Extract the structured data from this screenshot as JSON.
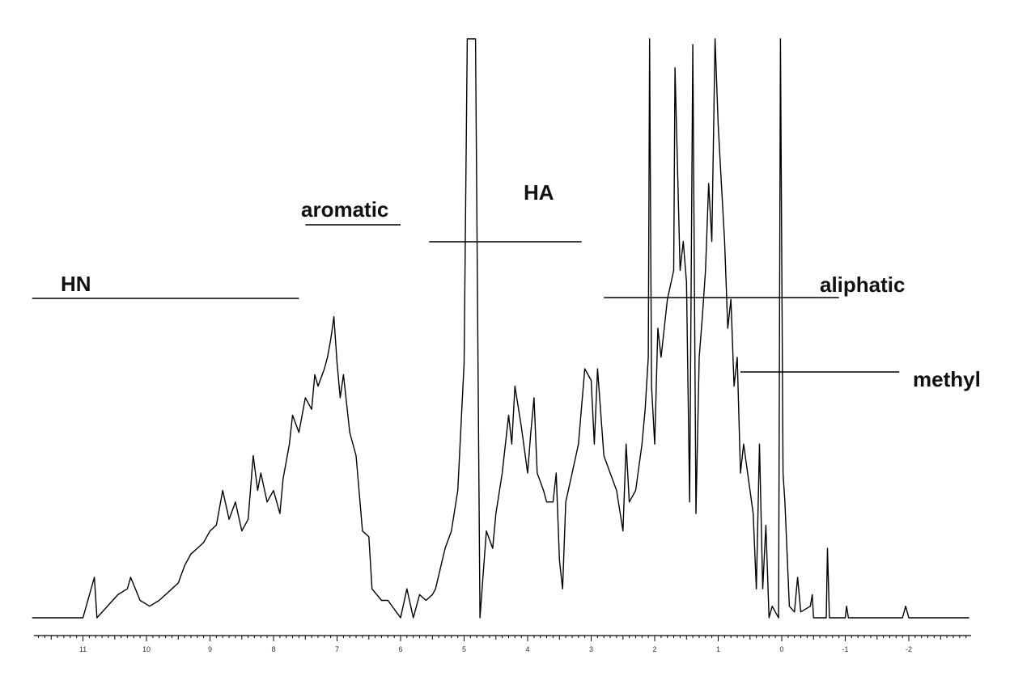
{
  "chart_data": {
    "type": "line",
    "title": "",
    "xlabel": "",
    "ylabel": "",
    "x_reversed": true,
    "xlim": [
      11.8,
      -2.95
    ],
    "tick_labels": [
      "11",
      "10",
      "9",
      "8",
      "7",
      "6",
      "5",
      "4",
      "3",
      "2",
      "1",
      "0",
      "-1",
      "-2"
    ],
    "regions": [
      {
        "name": "HN",
        "x_range": [
          11.8,
          7.6
        ]
      },
      {
        "name": "aromatic",
        "x_range": [
          7.5,
          6.0
        ]
      },
      {
        "name": "HA",
        "x_range": [
          5.55,
          3.15
        ]
      },
      {
        "name": "aliphatic",
        "x_range": [
          2.8,
          -0.9
        ]
      },
      {
        "name": "methyl",
        "x_range": [
          0.65,
          -1.85
        ]
      }
    ],
    "series": [
      {
        "values_unit": "relative intensity (approximate)",
        "points": [
          [
            11.8,
            0.0
          ],
          [
            11.0,
            0.0
          ],
          [
            10.82,
            0.07
          ],
          [
            10.78,
            0.0
          ],
          [
            10.45,
            0.04
          ],
          [
            10.3,
            0.05
          ],
          [
            10.25,
            0.07
          ],
          [
            10.1,
            0.03
          ],
          [
            9.95,
            0.02
          ],
          [
            9.8,
            0.03
          ],
          [
            9.7,
            0.04
          ],
          [
            9.6,
            0.05
          ],
          [
            9.5,
            0.06
          ],
          [
            9.4,
            0.09
          ],
          [
            9.3,
            0.11
          ],
          [
            9.2,
            0.12
          ],
          [
            9.1,
            0.13
          ],
          [
            9.0,
            0.15
          ],
          [
            8.9,
            0.16
          ],
          [
            8.8,
            0.22
          ],
          [
            8.7,
            0.17
          ],
          [
            8.6,
            0.2
          ],
          [
            8.5,
            0.15
          ],
          [
            8.4,
            0.17
          ],
          [
            8.32,
            0.28
          ],
          [
            8.25,
            0.22
          ],
          [
            8.2,
            0.25
          ],
          [
            8.1,
            0.2
          ],
          [
            8.0,
            0.22
          ],
          [
            7.9,
            0.18
          ],
          [
            7.85,
            0.24
          ],
          [
            7.75,
            0.3
          ],
          [
            7.7,
            0.35
          ],
          [
            7.6,
            0.32
          ],
          [
            7.5,
            0.38
          ],
          [
            7.4,
            0.36
          ],
          [
            7.35,
            0.42
          ],
          [
            7.3,
            0.4
          ],
          [
            7.2,
            0.43
          ],
          [
            7.15,
            0.45
          ],
          [
            7.1,
            0.48
          ],
          [
            7.05,
            0.52
          ],
          [
            7.0,
            0.44
          ],
          [
            6.95,
            0.38
          ],
          [
            6.9,
            0.42
          ],
          [
            6.8,
            0.32
          ],
          [
            6.75,
            0.3
          ],
          [
            6.7,
            0.28
          ],
          [
            6.6,
            0.15
          ],
          [
            6.5,
            0.14
          ],
          [
            6.45,
            0.05
          ],
          [
            6.3,
            0.03
          ],
          [
            6.2,
            0.03
          ],
          [
            6.0,
            0.0
          ],
          [
            5.9,
            0.05
          ],
          [
            5.8,
            0.0
          ],
          [
            5.7,
            0.04
          ],
          [
            5.6,
            0.03
          ],
          [
            5.5,
            0.04
          ],
          [
            5.45,
            0.05
          ],
          [
            5.3,
            0.12
          ],
          [
            5.2,
            0.15
          ],
          [
            5.1,
            0.22
          ],
          [
            5.0,
            0.44
          ],
          [
            4.95,
            1.0
          ],
          [
            4.82,
            1.0
          ],
          [
            4.75,
            0.0
          ],
          [
            4.65,
            0.15
          ],
          [
            4.55,
            0.12
          ],
          [
            4.5,
            0.18
          ],
          [
            4.4,
            0.25
          ],
          [
            4.3,
            0.35
          ],
          [
            4.25,
            0.3
          ],
          [
            4.2,
            0.4
          ],
          [
            4.1,
            0.33
          ],
          [
            4.0,
            0.25
          ],
          [
            3.95,
            0.32
          ],
          [
            3.9,
            0.38
          ],
          [
            3.85,
            0.25
          ],
          [
            3.75,
            0.22
          ],
          [
            3.7,
            0.2
          ],
          [
            3.6,
            0.2
          ],
          [
            3.55,
            0.25
          ],
          [
            3.5,
            0.1
          ],
          [
            3.45,
            0.05
          ],
          [
            3.4,
            0.2
          ],
          [
            3.3,
            0.25
          ],
          [
            3.2,
            0.3
          ],
          [
            3.1,
            0.43
          ],
          [
            3.0,
            0.41
          ],
          [
            2.95,
            0.3
          ],
          [
            2.9,
            0.43
          ],
          [
            2.8,
            0.28
          ],
          [
            2.7,
            0.25
          ],
          [
            2.6,
            0.22
          ],
          [
            2.5,
            0.15
          ],
          [
            2.45,
            0.3
          ],
          [
            2.4,
            0.2
          ],
          [
            2.3,
            0.22
          ],
          [
            2.2,
            0.3
          ],
          [
            2.15,
            0.36
          ],
          [
            2.1,
            0.45
          ],
          [
            2.08,
            1.0
          ],
          [
            2.05,
            0.4
          ],
          [
            2.0,
            0.3
          ],
          [
            1.95,
            0.5
          ],
          [
            1.9,
            0.45
          ],
          [
            1.8,
            0.55
          ],
          [
            1.7,
            0.6
          ],
          [
            1.68,
            0.95
          ],
          [
            1.6,
            0.6
          ],
          [
            1.55,
            0.65
          ],
          [
            1.5,
            0.58
          ],
          [
            1.45,
            0.2
          ],
          [
            1.4,
            0.99
          ],
          [
            1.35,
            0.18
          ],
          [
            1.3,
            0.45
          ],
          [
            1.25,
            0.52
          ],
          [
            1.2,
            0.6
          ],
          [
            1.15,
            0.75
          ],
          [
            1.1,
            0.65
          ],
          [
            1.05,
            1.0
          ],
          [
            1.0,
            0.85
          ],
          [
            0.95,
            0.75
          ],
          [
            0.9,
            0.65
          ],
          [
            0.85,
            0.5
          ],
          [
            0.8,
            0.55
          ],
          [
            0.75,
            0.4
          ],
          [
            0.7,
            0.45
          ],
          [
            0.65,
            0.25
          ],
          [
            0.6,
            0.3
          ],
          [
            0.5,
            0.22
          ],
          [
            0.45,
            0.18
          ],
          [
            0.4,
            0.05
          ],
          [
            0.35,
            0.3
          ],
          [
            0.3,
            0.05
          ],
          [
            0.25,
            0.16
          ],
          [
            0.2,
            0.0
          ],
          [
            0.15,
            0.02
          ],
          [
            0.05,
            0.0
          ],
          [
            0.02,
            1.0
          ],
          [
            -0.02,
            0.25
          ],
          [
            -0.05,
            0.2
          ],
          [
            -0.12,
            0.02
          ],
          [
            -0.2,
            0.01
          ],
          [
            -0.25,
            0.07
          ],
          [
            -0.3,
            0.01
          ],
          [
            -0.45,
            0.02
          ],
          [
            -0.48,
            0.04
          ],
          [
            -0.5,
            0.0
          ],
          [
            -0.7,
            0.0
          ],
          [
            -0.72,
            0.12
          ],
          [
            -0.75,
            0.0
          ],
          [
            -1.0,
            0.0
          ],
          [
            -1.02,
            0.02
          ],
          [
            -1.05,
            0.0
          ],
          [
            -1.9,
            0.0
          ],
          [
            -1.95,
            0.02
          ],
          [
            -2.0,
            0.0
          ],
          [
            -2.95,
            0.0
          ]
        ]
      }
    ],
    "grid": false,
    "legend": "none",
    "line_color": "#000000"
  }
}
